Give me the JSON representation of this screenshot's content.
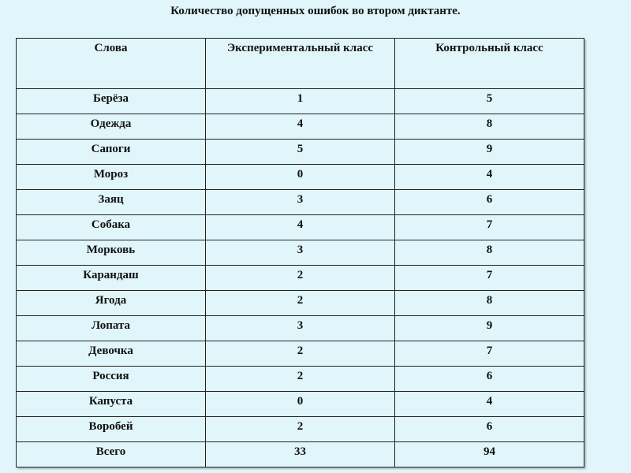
{
  "title": "Количество допущенных ошибок во втором диктанте.",
  "table": {
    "header": [
      "Слова",
      "Экспериментальный класс",
      "Контрольный класс"
    ],
    "rows": [
      [
        "Берёза",
        1,
        5
      ],
      [
        "Одежда",
        4,
        8
      ],
      [
        "Сапоги",
        5,
        9
      ],
      [
        "Мороз",
        0,
        4
      ],
      [
        "Заяц",
        3,
        6
      ],
      [
        "Собака",
        4,
        7
      ],
      [
        "Морковь",
        3,
        8
      ],
      [
        "Карандаш",
        2,
        7
      ],
      [
        "Ягода",
        2,
        8
      ],
      [
        "Лопата",
        3,
        9
      ],
      [
        "Девочка",
        2,
        7
      ],
      [
        "Россия",
        2,
        6
      ],
      [
        "Капуста",
        0,
        4
      ],
      [
        "Воробей",
        2,
        6
      ],
      [
        "Всего",
        33,
        94
      ]
    ]
  }
}
